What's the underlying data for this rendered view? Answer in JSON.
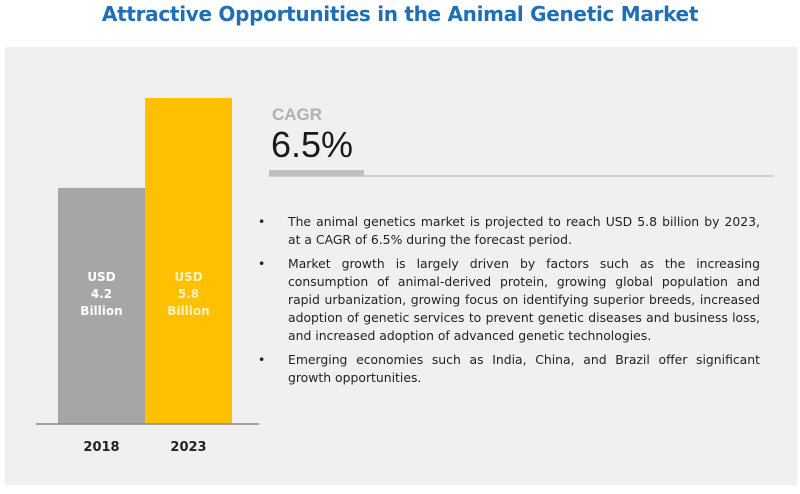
{
  "title": "Attractive Opportunities in the Animal Genetic Market",
  "cagr": {
    "label": "CAGR",
    "value": "6.5%"
  },
  "bullets": [
    "The animal genetics market is projected to reach USD 5.8 billion by 2023, at a CAGR of 6.5% during the forecast period.",
    "Market growth is largely driven by factors such as the increasing consumption of animal-derived protein, growing global population and rapid urbanization, growing focus on identifying superior breeds, increased adoption of genetic services to prevent genetic diseases and business loss, and increased adoption of advanced genetic technologies.",
    "Emerging economies such as India, China, and Brazil offer significant growth opportunities."
  ],
  "bullet_symbol": "•",
  "chart_data": {
    "type": "bar",
    "categories": [
      "2018",
      "2023"
    ],
    "values": [
      4.2,
      5.8
    ],
    "data_labels": [
      [
        "USD",
        "4.2",
        "Billion"
      ],
      [
        "USD",
        "5.8",
        "Billion"
      ]
    ],
    "colors": [
      "#a6a6a6",
      "#ffc000"
    ],
    "label_colors": [
      "#ffffff",
      "#fff2c0"
    ],
    "unit": "USD Billion",
    "grid": false
  }
}
